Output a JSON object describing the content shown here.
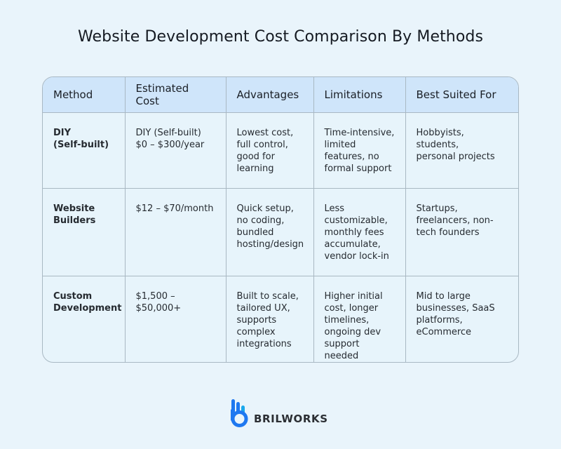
{
  "title": "Website Development Cost Comparison By Methods",
  "table": {
    "headers": [
      "Method",
      "Estimated Cost",
      "Advantages",
      "Limitations",
      "Best Suited For"
    ],
    "rows": [
      {
        "method": "DIY\n(Self-built)",
        "cost": "DIY (Self-built)\n$0 – $300/year",
        "advantages": "Lowest cost,\nfull control,\ngood for\nlearning",
        "limitations": "Time-intensive,\nlimited\nfeatures, no\nformal support",
        "best_for": "Hobbyists,\nstudents,\npersonal projects"
      },
      {
        "method": "Website\nBuilders",
        "cost": "$12 – $70/month",
        "advantages": "Quick setup,\nno coding,\nbundled\nhosting/design",
        "limitations": "Less\ncustomizable,\nmonthly fees\naccumulate,\nvendor lock-in",
        "best_for": "Startups,\nfreelancers, non-\ntech founders"
      },
      {
        "method": "Custom\nDevelopment",
        "cost": "$1,500 –\n$50,000+",
        "advantages": "Built to scale,\ntailored UX,\nsupports\ncomplex\nintegrations",
        "limitations": "Higher initial\ncost, longer\ntimelines,\nongoing dev\nsupport needed",
        "best_for": "Mid to large\nbusinesses, SaaS\nplatforms,\neCommerce"
      }
    ]
  },
  "logo": {
    "text": "BRILWORKS",
    "colors": {
      "primary": "#1e78f0",
      "secondary": "#1aa8ec"
    }
  }
}
